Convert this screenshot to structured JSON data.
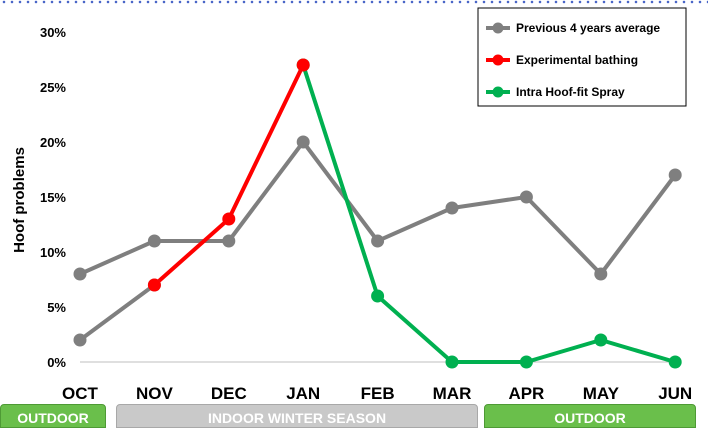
{
  "chart_data": {
    "type": "line",
    "categories": [
      "OCT",
      "NOV",
      "DEC",
      "JAN",
      "FEB",
      "MAR",
      "APR",
      "MAY",
      "JUN"
    ],
    "ylabel": "Hoof problems",
    "ylim": [
      0,
      30
    ],
    "yticks": [
      "0%",
      "5%",
      "10%",
      "15%",
      "20%",
      "25%",
      "30%"
    ],
    "grid": false,
    "legend_position": "top-right",
    "series": [
      {
        "name": "Previous 4 years average",
        "color": "#7f7f7f",
        "x": [
          "OCT",
          "NOV",
          "DEC",
          "JAN",
          "FEB",
          "MAR",
          "APR",
          "MAY",
          "JUN"
        ],
        "values": [
          8,
          11,
          11,
          20,
          11,
          14,
          15,
          8,
          17
        ]
      },
      {
        "name": "Experimental bathing",
        "color": "#ff0000",
        "x": [
          "NOV",
          "DEC",
          "JAN"
        ],
        "values": [
          7,
          13,
          27
        ]
      },
      {
        "name": "Intra Hoof-fit Spray",
        "color": "#00b050",
        "x": [
          "JAN",
          "FEB",
          "MAR",
          "APR",
          "MAY",
          "JUN"
        ],
        "values": [
          27,
          6,
          0,
          0,
          2,
          0
        ]
      }
    ],
    "extra_segments": [
      {
        "color": "#7f7f7f",
        "x": [
          "OCT",
          "NOV"
        ],
        "values": [
          2,
          7
        ]
      }
    ]
  },
  "seasons": [
    {
      "label": "OUTDOOR",
      "color": "#6abf4b"
    },
    {
      "label": "INDOOR WINTER SEASON",
      "color": "#c9c9c9"
    },
    {
      "label": "OUTDOOR",
      "color": "#6abf4b"
    }
  ]
}
